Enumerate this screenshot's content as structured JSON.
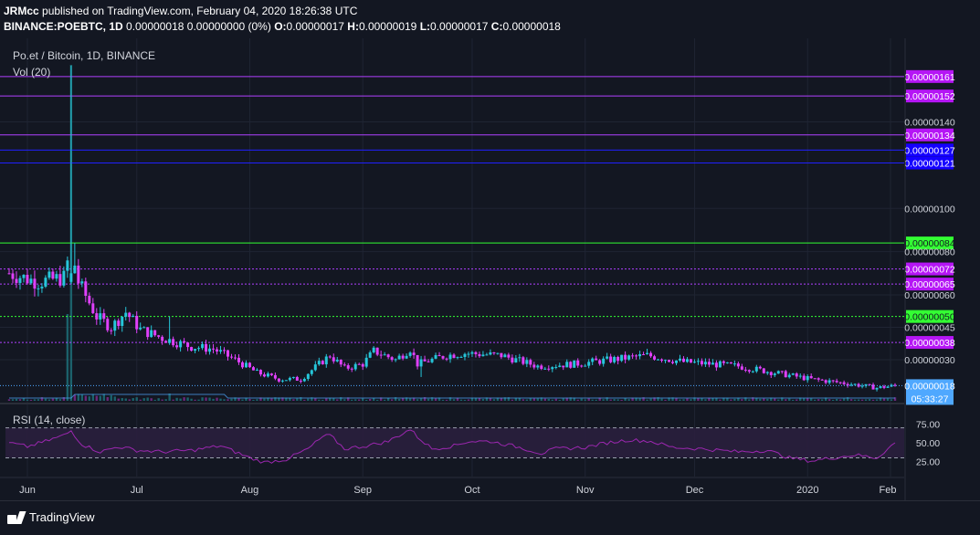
{
  "header": {
    "publisher": "JRMcc",
    "published_text": "published on TradingView.com, February 04, 2020 18:26:38 UTC",
    "symbol": "BINANCE:POEBTC, 1D",
    "quote_text": "0.00000018 0.00000000 (0%)",
    "o_label": "O:",
    "o_value": "0.00000017",
    "h_label": "H:",
    "h_value": "0.00000019",
    "l_label": "L:",
    "l_value": "0.00000017",
    "c_label": "C:",
    "c_value": "0.00000018"
  },
  "legend": {
    "title": "Po.et / Bitcoin, 1D, BINANCE",
    "volume": "Vol (20)",
    "rsi": "RSI (14, close)"
  },
  "footer": {
    "brand": "TradingView"
  },
  "colors": {
    "background": "#131722",
    "up": "#26c6da",
    "down": "#e040fb",
    "magenta_line": "#b040ff",
    "blue_line": "#2020ff",
    "green_line": "#33ff33",
    "rsi_line": "#9c27b0",
    "last_price": "#4fa8ff"
  },
  "chart_data": {
    "type": "candlestick",
    "price_unit": "BTC",
    "x_ticks": [
      "Jun",
      "Jul",
      "Aug",
      "Sep",
      "Oct",
      "Nov",
      "Dec",
      "2020",
      "Feb"
    ],
    "y_ticks": [
      "0.00000140",
      "0.00000100",
      "0.00000080",
      "0.00000060",
      "0.00000045",
      "0.00000030"
    ],
    "y_range": [
      1.1e-07,
      1.66e-06
    ],
    "horizontal_lines": [
      {
        "value": 1.61e-06,
        "label": "0.00000161",
        "color": "magenta"
      },
      {
        "value": 1.52e-06,
        "label": "0.00000152",
        "color": "magenta"
      },
      {
        "value": 1.34e-06,
        "label": "0.00000134",
        "color": "magenta"
      },
      {
        "value": 1.27e-06,
        "label": "0.00000127",
        "color": "blue"
      },
      {
        "value": 1.21e-06,
        "label": "0.00000121",
        "color": "blue"
      },
      {
        "value": 8.4e-07,
        "label": "0.00000084",
        "color": "green"
      },
      {
        "value": 7.2e-07,
        "label": "0.00000072",
        "color": "magenta",
        "dotted": true
      },
      {
        "value": 6.5e-07,
        "label": "0.00000065",
        "color": "magenta",
        "dotted": true
      },
      {
        "value": 5e-07,
        "label": "0.00000050",
        "color": "green",
        "dotted": true
      },
      {
        "value": 3.8e-07,
        "label": "0.00000038",
        "color": "magenta",
        "dotted": true
      }
    ],
    "last_price": {
      "value": 1.8e-07,
      "label": "0.00000018",
      "countdown": "05:33:27"
    },
    "price_path_keypoints": [
      [
        0,
        7e-07
      ],
      [
        8,
        6.6e-07
      ],
      [
        15,
        6.8e-07
      ],
      [
        17,
        8.2e-07
      ],
      [
        19,
        6.6e-07
      ],
      [
        24,
        5e-07
      ],
      [
        28,
        4.5e-07
      ],
      [
        32,
        5.2e-07
      ],
      [
        36,
        4.4e-07
      ],
      [
        42,
        4e-07
      ],
      [
        50,
        3.6e-07
      ],
      [
        56,
        3.5e-07
      ],
      [
        62,
        3e-07
      ],
      [
        68,
        2.4e-07
      ],
      [
        74,
        2.1e-07
      ],
      [
        80,
        2.1e-07
      ],
      [
        85,
        2.8e-07
      ],
      [
        88,
        3.2e-07
      ],
      [
        92,
        2.6e-07
      ],
      [
        97,
        2.8e-07
      ],
      [
        100,
        3.4e-07
      ],
      [
        106,
        3e-07
      ],
      [
        110,
        3.5e-07
      ],
      [
        112,
        2.8e-07
      ],
      [
        120,
        3.2e-07
      ],
      [
        125,
        3.3e-07
      ],
      [
        135,
        3.2e-07
      ],
      [
        145,
        2.7e-07
      ],
      [
        155,
        2.8e-07
      ],
      [
        165,
        3e-07
      ],
      [
        175,
        3.2e-07
      ],
      [
        185,
        2.9e-07
      ],
      [
        200,
        2.7e-07
      ],
      [
        210,
        2.4e-07
      ],
      [
        220,
        2.1e-07
      ],
      [
        230,
        1.9e-07
      ],
      [
        238,
        1.7e-07
      ],
      [
        243,
        1.8e-07
      ]
    ],
    "rsi_ticks": [
      "75.00",
      "50.00",
      "25.00"
    ],
    "rsi_levels": {
      "upper": 70,
      "lower": 30
    },
    "rsi_path_keypoints": [
      [
        0,
        50
      ],
      [
        5,
        45
      ],
      [
        10,
        52
      ],
      [
        15,
        60
      ],
      [
        17,
        66
      ],
      [
        20,
        48
      ],
      [
        25,
        38
      ],
      [
        30,
        45
      ],
      [
        35,
        40
      ],
      [
        42,
        38
      ],
      [
        50,
        40
      ],
      [
        58,
        46
      ],
      [
        62,
        38
      ],
      [
        66,
        30
      ],
      [
        70,
        24
      ],
      [
        76,
        28
      ],
      [
        82,
        42
      ],
      [
        86,
        58
      ],
      [
        88,
        60
      ],
      [
        92,
        42
      ],
      [
        98,
        46
      ],
      [
        104,
        52
      ],
      [
        110,
        68
      ],
      [
        112,
        58
      ],
      [
        116,
        42
      ],
      [
        122,
        46
      ],
      [
        126,
        52
      ],
      [
        132,
        52
      ],
      [
        140,
        44
      ],
      [
        146,
        36
      ],
      [
        150,
        42
      ],
      [
        158,
        44
      ],
      [
        164,
        50
      ],
      [
        170,
        54
      ],
      [
        176,
        52
      ],
      [
        182,
        44
      ],
      [
        190,
        42
      ],
      [
        200,
        38
      ],
      [
        208,
        40
      ],
      [
        214,
        30
      ],
      [
        220,
        26
      ],
      [
        226,
        30
      ],
      [
        232,
        34
      ],
      [
        238,
        30
      ],
      [
        243,
        50
      ]
    ]
  }
}
